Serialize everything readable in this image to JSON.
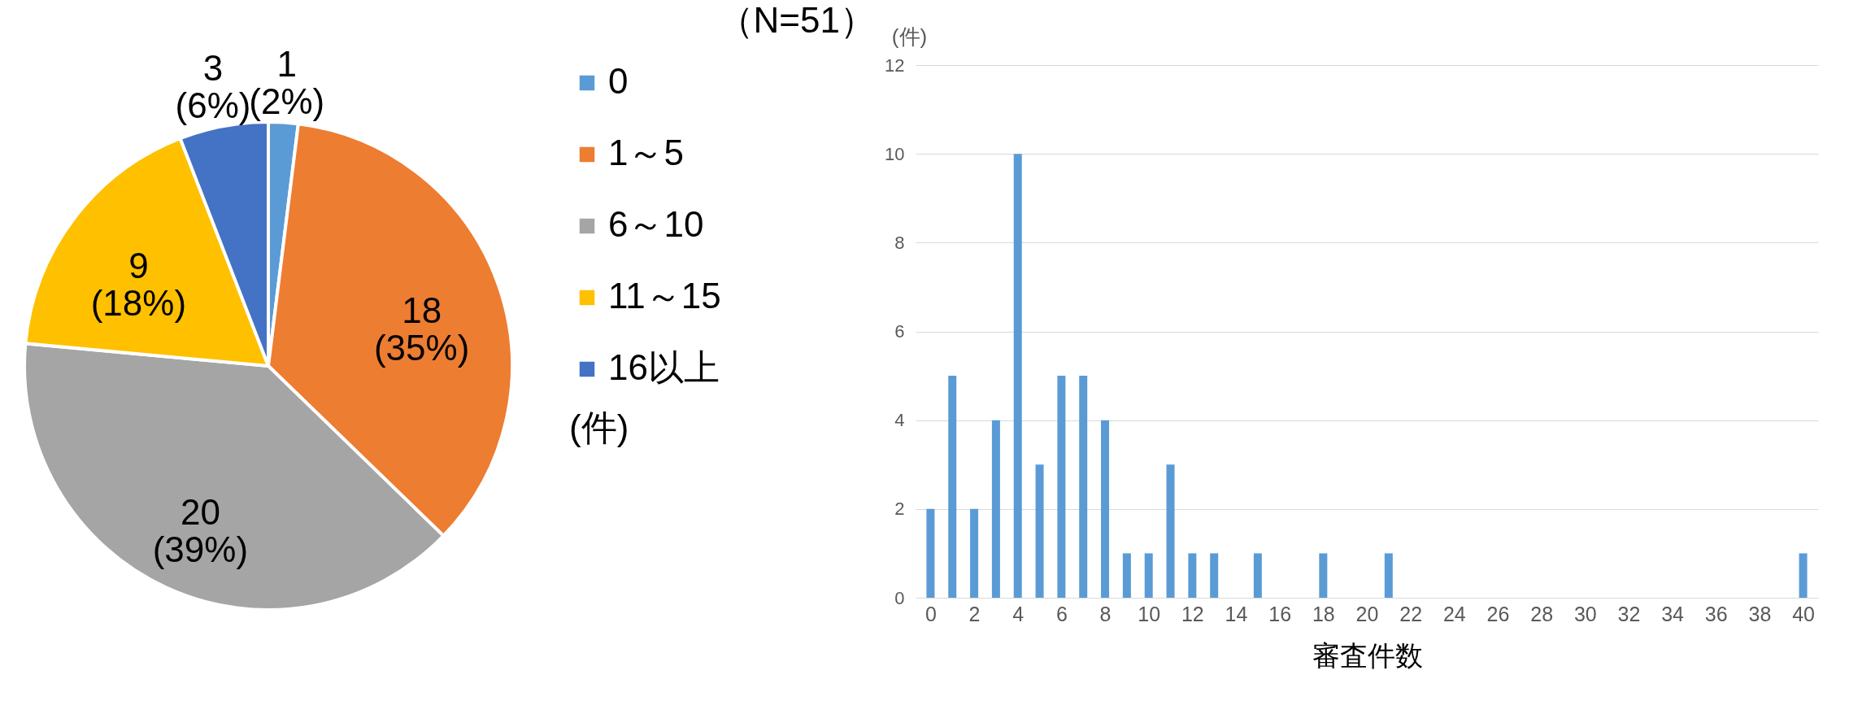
{
  "chart_data": [
    {
      "type": "pie",
      "title": "（N=51）",
      "legend_title": "(件)",
      "legend": "right",
      "categories": [
        "0",
        "1～5",
        "6～10",
        "11～15",
        "16以上"
      ],
      "values": [
        1,
        18,
        20,
        9,
        3
      ],
      "colors": [
        "#5b9bd5",
        "#ed7d31",
        "#a5a5a5",
        "#ffc000",
        "#4472c4"
      ],
      "value_labels": [
        "1\n(2%)",
        "18\n(35%)",
        "20\n(39%)",
        "9\n(18%)",
        "3\n(6%)"
      ]
    },
    {
      "type": "bar",
      "ylabel": "(件)",
      "xlabel": "審査件数",
      "grid": "y",
      "x": [
        0,
        1,
        2,
        3,
        4,
        5,
        6,
        7,
        8,
        9,
        10,
        11,
        12,
        13,
        15,
        18,
        21,
        40
      ],
      "series": [
        {
          "color": "#5b9bd5",
          "values": [
            2,
            5,
            2,
            4,
            10,
            3,
            5,
            5,
            4,
            1,
            1,
            3,
            1,
            1,
            1,
            1,
            1,
            1
          ]
        }
      ],
      "xlim": [
        -0.5,
        40.5
      ],
      "xticks": [
        0,
        2,
        4,
        6,
        8,
        10,
        12,
        14,
        16,
        18,
        20,
        22,
        24,
        26,
        28,
        30,
        32,
        34,
        36,
        38,
        40
      ],
      "ylim": [
        0,
        12
      ],
      "yticks": [
        0,
        2,
        4,
        6,
        8,
        10,
        12
      ]
    }
  ]
}
